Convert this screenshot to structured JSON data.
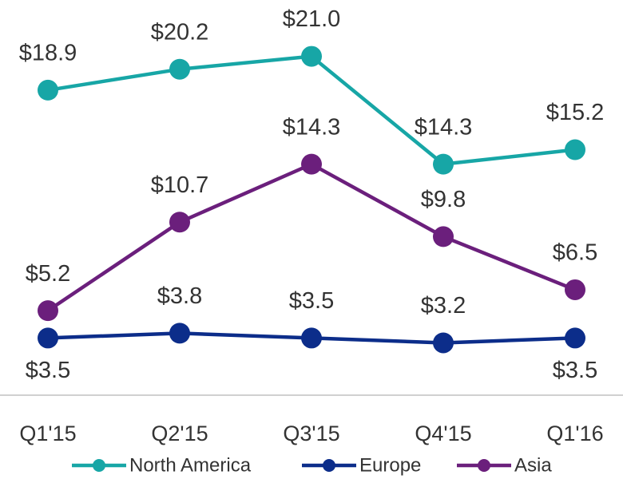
{
  "chart_data": {
    "type": "line",
    "categories": [
      "Q1'15",
      "Q2'15",
      "Q3'15",
      "Q4'15",
      "Q1'16"
    ],
    "ylim": [
      0,
      24.5
    ],
    "series": [
      {
        "name": "North America",
        "color": "#17a6a6",
        "values": [
          18.9,
          20.2,
          21,
          14.3,
          15.2
        ],
        "value_labels": [
          "$18.9",
          "$20.2",
          "$21.0",
          "$14.3",
          "$15.2"
        ]
      },
      {
        "name": "Europe",
        "color": "#0c2d8a",
        "values": [
          3.5,
          3.8,
          3.5,
          3.2,
          3.5
        ],
        "value_labels": [
          "$3.5",
          "$3.8",
          "$3.5",
          "$3.2",
          "$3.5"
        ]
      },
      {
        "name": "Asia",
        "color": "#6b1f7c",
        "values": [
          5.2,
          10.7,
          14.3,
          9.8,
          6.5
        ],
        "value_labels": [
          "$5.2",
          "$10.7",
          "$14.3",
          "$9.8",
          "$6.5"
        ]
      }
    ]
  }
}
